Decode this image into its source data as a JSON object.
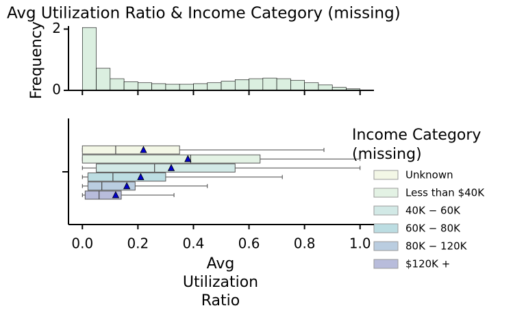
{
  "chart_data": [
    {
      "type": "histogram",
      "title": "Avg Utilization Ratio & Income Category (missing)",
      "y_label": "Frequency",
      "bins": [
        0,
        0.05,
        0.1,
        0.15,
        0.2,
        0.25,
        0.3,
        0.35,
        0.4,
        0.45,
        0.5,
        0.55,
        0.6,
        0.65,
        0.7,
        0.75,
        0.8,
        0.85,
        0.9,
        0.95,
        1.0
      ],
      "values": [
        2.05,
        0.72,
        0.38,
        0.28,
        0.25,
        0.22,
        0.2,
        0.2,
        0.22,
        0.25,
        0.3,
        0.35,
        0.38,
        0.4,
        0.38,
        0.33,
        0.25,
        0.18,
        0.1,
        0.05
      ],
      "color": "#cfe9d6",
      "xlim": [
        -0.05,
        1.05
      ],
      "xticks": [
        0,
        0.2,
        0.4,
        0.6,
        0.8,
        1
      ],
      "ylim": [
        0,
        2.1
      ],
      "yticks": [
        0,
        2
      ]
    },
    {
      "type": "box",
      "x_label": "Avg Utilization Ratio",
      "legend_title": "Income Category (missing)",
      "xlim": [
        -0.05,
        1.05
      ],
      "xticks": [
        {
          "value": 0,
          "label": "0.0"
        },
        0.2,
        0.4,
        0.6,
        0.8,
        {
          "value": 1,
          "label": "1.0"
        }
      ],
      "series": [
        {
          "name": "Unknown",
          "color": "#f3f7e6",
          "min": 0,
          "q1": 0,
          "median": 0.12,
          "q3": 0.35,
          "max": 0.87,
          "mean": 0.22
        },
        {
          "name": "Less than $40K",
          "color": "#e3f2e4",
          "min": 0,
          "q1": 0,
          "median": 0.39,
          "q3": 0.64,
          "max": 1.0,
          "mean": 0.38
        },
        {
          "name": "40K − 60K",
          "color": "#d2e9e6",
          "min": 0,
          "q1": 0.05,
          "median": 0.26,
          "q3": 0.55,
          "max": 1.0,
          "mean": 0.32
        },
        {
          "name": "60K − 80K",
          "color": "#bcdde2",
          "min": 0,
          "q1": 0.02,
          "median": 0.11,
          "q3": 0.3,
          "max": 0.72,
          "mean": 0.21
        },
        {
          "name": "80K − 120K",
          "color": "#bacde0",
          "min": 0,
          "q1": 0.02,
          "median": 0.07,
          "q3": 0.19,
          "max": 0.45,
          "mean": 0.16
        },
        {
          "name": "$120K +",
          "color": "#b8bcdb",
          "min": 0,
          "q1": 0.01,
          "median": 0.06,
          "q3": 0.14,
          "max": 0.33,
          "mean": 0.12
        }
      ]
    }
  ]
}
